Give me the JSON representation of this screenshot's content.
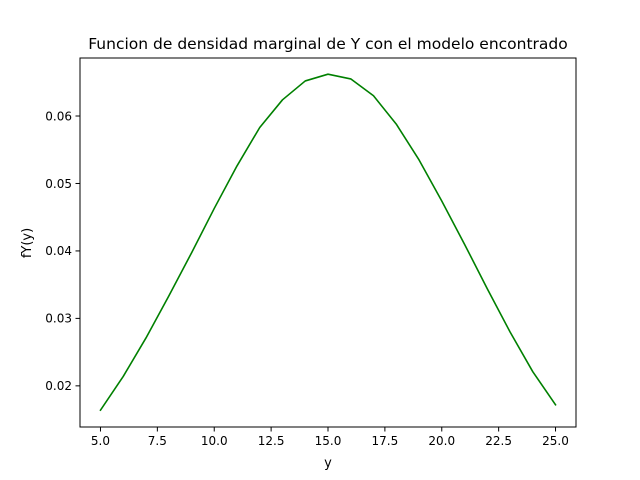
{
  "chart_data": {
    "type": "line",
    "title": "Funcion de densidad marginal de Y con el modelo encontrado",
    "xlabel": "y",
    "ylabel": "fY(y)",
    "xlim": [
      4.1,
      25.9
    ],
    "ylim": [
      0.0139,
      0.0686
    ],
    "grid": false,
    "xticks": [
      5.0,
      7.5,
      10.0,
      12.5,
      15.0,
      17.5,
      20.0,
      22.5,
      25.0
    ],
    "xtick_labels": [
      "5.0",
      "7.5",
      "10.0",
      "12.5",
      "15.0",
      "17.5",
      "20.0",
      "22.5",
      "25.0"
    ],
    "yticks": [
      0.02,
      0.03,
      0.04,
      0.05,
      0.06
    ],
    "ytick_labels": [
      "0.02",
      "0.03",
      "0.04",
      "0.05",
      "0.06"
    ],
    "series": [
      {
        "color": "#008000",
        "x": [
          5,
          6,
          7,
          8,
          9,
          10,
          11,
          12,
          13,
          14,
          15,
          16,
          17,
          18,
          19,
          20,
          21,
          22,
          23,
          24,
          25
        ],
        "y": [
          0.0164,
          0.0214,
          0.0271,
          0.0333,
          0.0397,
          0.0463,
          0.0526,
          0.0583,
          0.0624,
          0.0652,
          0.0662,
          0.0655,
          0.063,
          0.0588,
          0.0535,
          0.0474,
          0.041,
          0.0344,
          0.028,
          0.0221,
          0.0172
        ]
      }
    ]
  }
}
